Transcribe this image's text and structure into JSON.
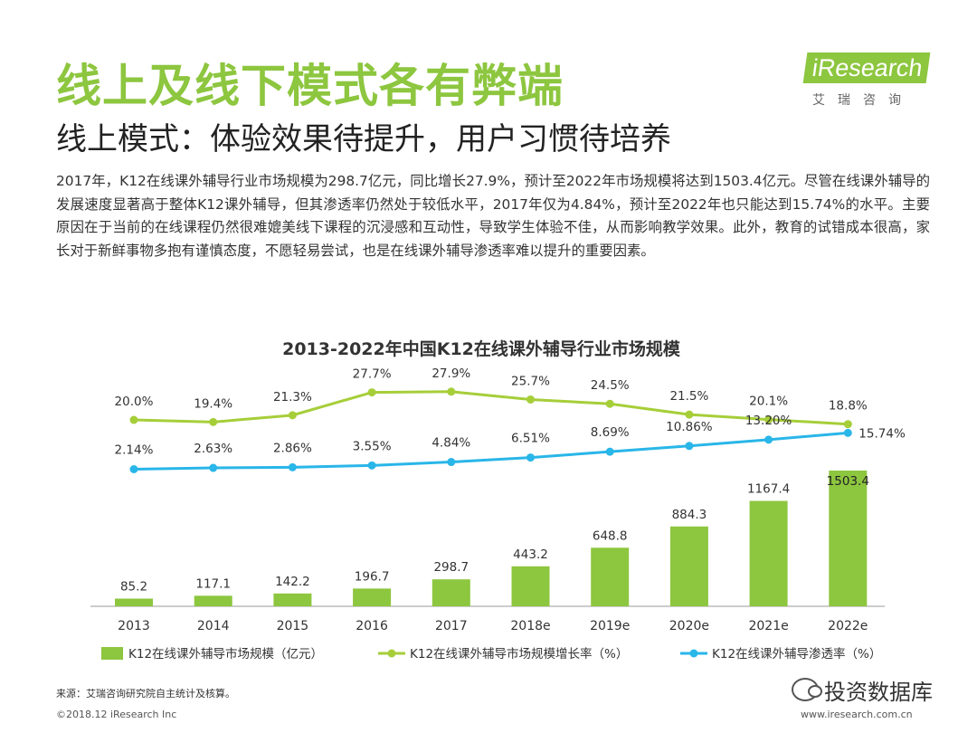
{
  "page": {
    "title": "线上及线下模式各有弊端",
    "subtitle": "线上模式：体验效果待提升，用户习惯待培养",
    "paragraph": "2017年，K12在线课外辅导行业市场规模为298.7亿元，同比增长27.9%，预计至2022年市场规模将达到1503.4亿元。尽管在线课外辅导的发展速度显著高于整体K12课外辅导，但其渗透率仍然处于较低水平，2017年仅为4.84%，预计至2022年也只能达到15.74%的水平。主要原因在于当前的在线课程仍然很难媲美线下课程的沉浸感和互动性，导致学生体验不佳，从而影响教学效果。此外，教育的试错成本很高，家长对于新鲜事物多抱有谨慎态度，不愿轻易尝试，也是在线课外辅导渗透率难以提升的重要因素。",
    "source": "来源：艾瑞咨询研究院自主统计及核算。",
    "copyright": "©2018.12 iResearch Inc",
    "site": "www.iresearch.com.cn",
    "watermark": "投资数据库"
  },
  "logo": {
    "brand": "iResearch",
    "sub": "艾瑞咨询"
  },
  "colors": {
    "brand_green": "#8dc63f",
    "bar_green": "#8dc63f",
    "growth_line": "#a6ce39",
    "penetration_line": "#29b6e8"
  },
  "chart_data": {
    "type": "bar",
    "title": "2013-2022年中国K12在线课外辅导行业市场规模",
    "categories": [
      "2013",
      "2014",
      "2015",
      "2016",
      "2017",
      "2018e",
      "2019e",
      "2020e",
      "2021e",
      "2022e"
    ],
    "series": [
      {
        "name": "K12在线课外辅导市场规模（亿元）",
        "type": "bar",
        "values": [
          85.2,
          117.1,
          142.2,
          196.7,
          298.7,
          443.2,
          648.8,
          884.3,
          1167.4,
          1503.4
        ],
        "labels": [
          "85.2",
          "117.1",
          "142.2",
          "196.7",
          "298.7",
          "443.2",
          "648.8",
          "884.3",
          "1167.4",
          "1503.4"
        ]
      },
      {
        "name": "K12在线课外辅导市场规模增长率（%）",
        "type": "line",
        "values": [
          20.0,
          19.4,
          21.3,
          27.7,
          27.9,
          25.7,
          24.5,
          21.5,
          20.1,
          18.8
        ],
        "labels": [
          "20.0%",
          "19.4%",
          "21.3%",
          "27.7%",
          "27.9%",
          "25.7%",
          "24.5%",
          "21.5%",
          "20.1%",
          "18.8%"
        ]
      },
      {
        "name": "K12在线课外辅导渗透率（%）",
        "type": "line",
        "values": [
          2.14,
          2.63,
          2.86,
          3.55,
          4.84,
          6.51,
          8.69,
          10.86,
          13.2,
          15.74
        ],
        "labels": [
          "2.14%",
          "2.63%",
          "2.86%",
          "3.55%",
          "4.84%",
          "6.51%",
          "8.69%",
          "10.86%",
          "13.20%",
          "15.74%"
        ]
      }
    ],
    "legend": "bottom",
    "grid": false
  }
}
